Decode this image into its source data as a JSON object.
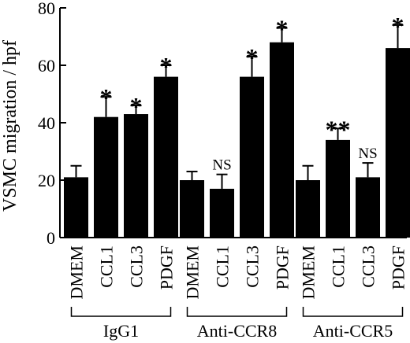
{
  "chart_data": {
    "type": "bar",
    "title": "",
    "ylabel": "VSMC migration / hpf",
    "xlabel": "",
    "ylim": [
      0,
      80
    ],
    "yticks": [
      0,
      20,
      40,
      60,
      80
    ],
    "grid": false,
    "bar_color": "#000000",
    "groups": [
      {
        "name": "IgG1",
        "bars": [
          {
            "label": "DMEM",
            "value": 21,
            "error": 4,
            "annotation": ""
          },
          {
            "label": "CCL1",
            "value": 42,
            "error": 7,
            "annotation": "*"
          },
          {
            "label": "CCL3",
            "value": 43,
            "error": 3,
            "annotation": "*"
          },
          {
            "label": "PDGF",
            "value": 56,
            "error": 4,
            "annotation": "*"
          }
        ]
      },
      {
        "name": "Anti-CCR8",
        "bars": [
          {
            "label": "DMEM",
            "value": 20,
            "error": 3,
            "annotation": ""
          },
          {
            "label": "CCL1",
            "value": 17,
            "error": 5,
            "annotation": "NS"
          },
          {
            "label": "CCL3",
            "value": 56,
            "error": 7,
            "annotation": "*"
          },
          {
            "label": "PDGF",
            "value": 68,
            "error": 5,
            "annotation": "*"
          }
        ]
      },
      {
        "name": "Anti-CCR5",
        "bars": [
          {
            "label": "DMEM",
            "value": 20,
            "error": 5,
            "annotation": ""
          },
          {
            "label": "CCL1",
            "value": 34,
            "error": 4,
            "annotation": "**"
          },
          {
            "label": "CCL3",
            "value": 21,
            "error": 5,
            "annotation": "NS"
          },
          {
            "label": "PDGF",
            "value": 66,
            "error": 8,
            "annotation": "*"
          }
        ]
      }
    ]
  }
}
